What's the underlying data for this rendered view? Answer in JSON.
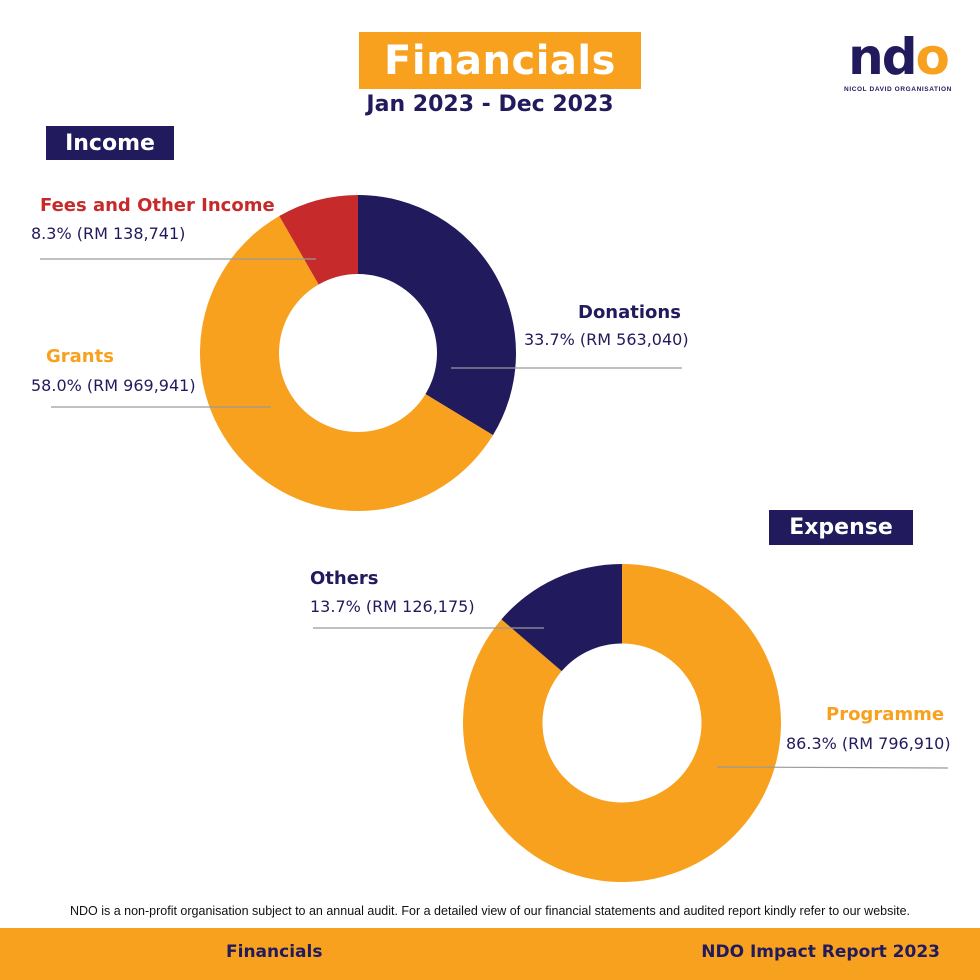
{
  "header": {
    "title": "Financials",
    "subtitle": "Jan 2023 - Dec 2023"
  },
  "logo": {
    "text_nd": "nd",
    "text_o": "o",
    "tagline": "NICOL DAVID ORGANISATION"
  },
  "colors": {
    "orange": "#f7a11f",
    "navy": "#211a5c",
    "red": "#c62a2a",
    "leader": "#9a9a9a"
  },
  "chart_data": [
    {
      "type": "pie",
      "title": "Income",
      "hole": 0.5,
      "slices": [
        {
          "name": "Donations",
          "value": 33.7,
          "label": "33.7% (RM 563,040)",
          "amount": 563040,
          "color": "#211a5c"
        },
        {
          "name": "Grants",
          "value": 58.0,
          "label": "58.0% (RM 969,941)",
          "amount": 969941,
          "color": "#f7a11f"
        },
        {
          "name": "Fees and Other Income",
          "value": 8.3,
          "label": "8.3% (RM 138,741)",
          "amount": 138741,
          "color": "#c62a2a"
        }
      ]
    },
    {
      "type": "pie",
      "title": "Expense",
      "hole": 0.5,
      "slices": [
        {
          "name": "Programme",
          "value": 86.3,
          "label": "86.3% (RM 796,910)",
          "amount": 796910,
          "color": "#f7a11f"
        },
        {
          "name": "Others",
          "value": 13.7,
          "label": "13.7% (RM 126,175)",
          "amount": 126175,
          "color": "#211a5c"
        }
      ]
    }
  ],
  "footnote": "NDO is a non-profit organisation subject to an annual audit.  For a detailed view of our financial statements and audited report kindly refer to our website.",
  "footer": {
    "left": "Financials",
    "right": "NDO Impact Report 2023"
  }
}
